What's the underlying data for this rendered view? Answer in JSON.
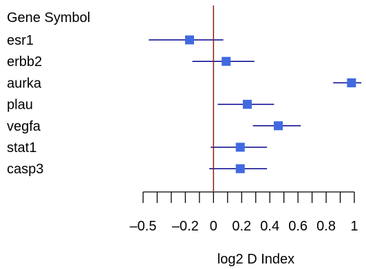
{
  "chart_data": {
    "type": "forest",
    "column_header": "Gene Symbol",
    "xlabel": "log2 D Index",
    "xlim": [
      -0.5,
      1.0
    ],
    "ticks": [
      -0.5,
      -0.4,
      -0.3,
      -0.2,
      -0.1,
      0,
      0.1,
      0.2,
      0.3,
      0.4,
      0.5,
      0.6,
      0.7,
      0.8,
      0.9,
      1.0
    ],
    "tick_labels": [
      {
        "value": -0.5,
        "label": "–0.5"
      },
      {
        "value": -0.2,
        "label": "–0.2"
      },
      {
        "value": 0,
        "label": "0"
      },
      {
        "value": 0.2,
        "label": "0.2"
      },
      {
        "value": 0.4,
        "label": "0.4"
      },
      {
        "value": 0.6,
        "label": "0.6"
      },
      {
        "value": 0.8,
        "label": "0.8"
      },
      {
        "value": 1.0,
        "label": "1"
      }
    ],
    "reference_line": 0,
    "rows": [
      {
        "label": "esr1",
        "estimate": -0.17,
        "lower": -0.46,
        "upper": 0.07
      },
      {
        "label": "erbb2",
        "estimate": 0.09,
        "lower": -0.15,
        "upper": 0.29
      },
      {
        "label": "aurka",
        "estimate": 0.98,
        "lower": 0.85,
        "upper": 1.05
      },
      {
        "label": "plau",
        "estimate": 0.24,
        "lower": 0.03,
        "upper": 0.43
      },
      {
        "label": "vegfa",
        "estimate": 0.46,
        "lower": 0.28,
        "upper": 0.62
      },
      {
        "label": "stat1",
        "estimate": 0.19,
        "lower": -0.02,
        "upper": 0.38
      },
      {
        "label": "casp3",
        "estimate": 0.19,
        "lower": -0.03,
        "upper": 0.38
      }
    ],
    "colors": {
      "marker": "#4169e1",
      "ci_line": "#00008b",
      "reference_line": "#8b1a1a",
      "axis": "#000000"
    }
  }
}
